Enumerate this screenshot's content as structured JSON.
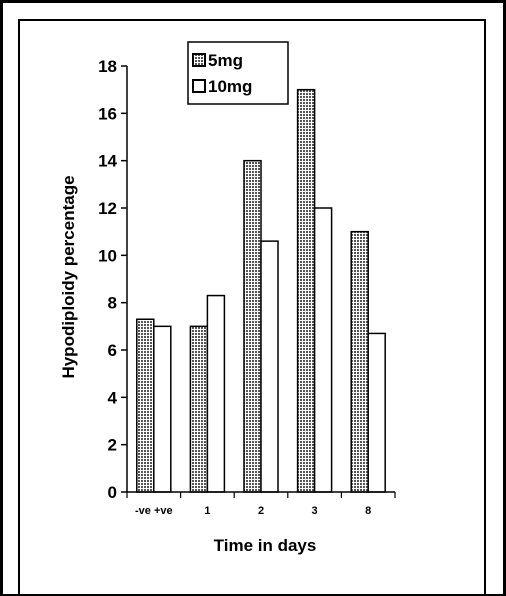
{
  "chart_data": {
    "type": "bar",
    "categories": [
      "-ve +ve",
      "1",
      "2",
      "3",
      "8"
    ],
    "series": [
      {
        "name": "5mg",
        "values": [
          7.3,
          7.0,
          14.0,
          17.0,
          11.0
        ],
        "pattern": "hatched"
      },
      {
        "name": "10mg",
        "values": [
          7.0,
          8.3,
          10.6,
          12.0,
          6.7
        ],
        "pattern": "hollow"
      }
    ],
    "title": "",
    "xlabel": "Time in days",
    "ylabel": "Hypodiploidy percentage",
    "ylim": [
      0,
      18
    ],
    "yticks": [
      0,
      2,
      4,
      6,
      8,
      10,
      12,
      14,
      16,
      18
    ],
    "grid": false,
    "legend": "top-center"
  }
}
